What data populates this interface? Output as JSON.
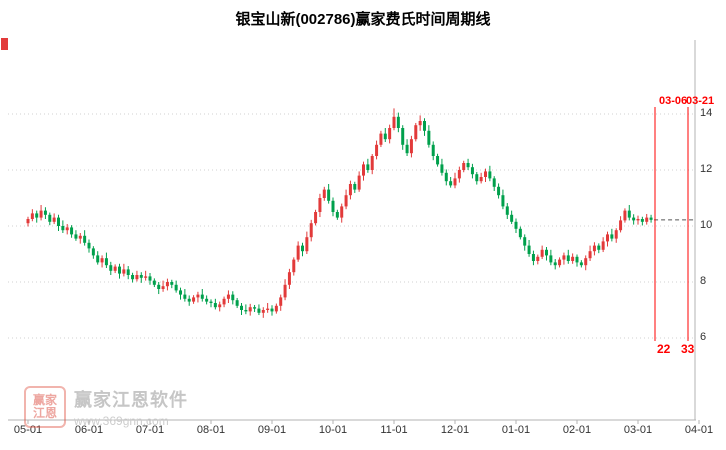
{
  "stock_name": "银宝山新",
  "stock_code": "002786",
  "watermark": {
    "logo_line1": "赢家",
    "logo_line2": "江恩",
    "brand": "赢家江恩软件",
    "url": "www.369gnn.com"
  },
  "chart_data": {
    "type": "candlestick",
    "title": "银宝山新(002786)赢家费氏时间周期线",
    "x_tick_labels": [
      "05-01",
      "06-01",
      "07-01",
      "08-01",
      "09-01",
      "10-01",
      "11-01",
      "12-01",
      "01-01",
      "02-01",
      "03-01",
      "04-01"
    ],
    "y_ticks": [
      14,
      12,
      10,
      8,
      6
    ],
    "ylim_visible": [
      6,
      14
    ],
    "grid": "dotted-horizontal",
    "legend": "none",
    "up_color": "#e23a3a",
    "down_color": "#00a04c",
    "annotation_color": "#ff0000",
    "last_price_line": 10.22,
    "fib_time_lines": [
      {
        "date_label": "03-06",
        "count_label": "22"
      },
      {
        "date_label": "03-21",
        "count_label": "33"
      }
    ],
    "candles_format": [
      "open",
      "close",
      "low",
      "high"
    ],
    "candles": [
      [
        10.1,
        10.25,
        9.98,
        10.33
      ],
      [
        10.25,
        10.45,
        10.17,
        10.6
      ],
      [
        10.45,
        10.3,
        10.12,
        10.55
      ],
      [
        10.3,
        10.55,
        10.2,
        10.75
      ],
      [
        10.55,
        10.4,
        10.25,
        10.67
      ],
      [
        10.4,
        10.15,
        10.03,
        10.48
      ],
      [
        10.15,
        10.3,
        10.07,
        10.45
      ],
      [
        10.3,
        10.0,
        9.82,
        10.4
      ],
      [
        10.0,
        9.85,
        9.75,
        10.2
      ],
      [
        9.85,
        9.95,
        9.7,
        10.07
      ],
      [
        9.95,
        9.7,
        9.58,
        10.03
      ],
      [
        9.7,
        9.55,
        9.47,
        9.85
      ],
      [
        9.55,
        9.65,
        9.37,
        9.75
      ],
      [
        9.65,
        9.4,
        9.3,
        9.85
      ],
      [
        9.4,
        9.2,
        9.05,
        9.52
      ],
      [
        9.2,
        8.95,
        8.83,
        9.28
      ],
      [
        8.95,
        8.7,
        8.62,
        9.1
      ],
      [
        8.7,
        8.85,
        8.52,
        8.95
      ],
      [
        8.85,
        8.6,
        8.5,
        9.05
      ],
      [
        8.6,
        8.4,
        8.25,
        8.72
      ],
      [
        8.4,
        8.55,
        8.32,
        8.63
      ],
      [
        8.55,
        8.3,
        8.12,
        8.65
      ],
      [
        8.3,
        8.45,
        8.2,
        8.65
      ],
      [
        8.45,
        8.25,
        8.1,
        8.57
      ],
      [
        8.25,
        8.1,
        7.98,
        8.33
      ],
      [
        8.1,
        8.25,
        8.02,
        8.4
      ],
      [
        8.25,
        8.15,
        7.97,
        8.35
      ],
      [
        8.15,
        8.2,
        8.05,
        8.4
      ],
      [
        8.2,
        8.05,
        7.9,
        8.32
      ],
      [
        8.05,
        7.9,
        7.82,
        8.13
      ],
      [
        7.9,
        7.75,
        7.57,
        8.0
      ],
      [
        7.75,
        7.85,
        7.65,
        8.05
      ],
      [
        7.85,
        8.0,
        7.7,
        8.12
      ],
      [
        8.0,
        7.9,
        7.78,
        8.08
      ],
      [
        7.9,
        7.7,
        7.62,
        8.05
      ],
      [
        7.7,
        7.55,
        7.37,
        7.8
      ],
      [
        7.55,
        7.4,
        7.3,
        7.75
      ],
      [
        7.4,
        7.3,
        7.15,
        7.52
      ],
      [
        7.3,
        7.45,
        7.22,
        7.53
      ],
      [
        7.45,
        7.55,
        7.27,
        7.65
      ],
      [
        7.55,
        7.4,
        7.3,
        7.75
      ],
      [
        7.4,
        7.3,
        7.2,
        7.52
      ],
      [
        7.3,
        7.25,
        7.1,
        7.38
      ],
      [
        7.25,
        7.1,
        7.02,
        7.4
      ],
      [
        7.1,
        7.2,
        6.95,
        7.3
      ],
      [
        7.2,
        7.4,
        7.1,
        7.48
      ],
      [
        7.4,
        7.55,
        7.25,
        7.7
      ],
      [
        7.55,
        7.35,
        7.2,
        7.67
      ],
      [
        7.35,
        7.15,
        7.07,
        7.43
      ],
      [
        7.15,
        7.0,
        6.82,
        7.25
      ],
      [
        7.0,
        6.95,
        6.85,
        7.2
      ],
      [
        6.95,
        7.1,
        6.8,
        7.22
      ],
      [
        7.1,
        7.05,
        6.93,
        7.18
      ],
      [
        7.05,
        6.9,
        6.82,
        7.2
      ],
      [
        6.9,
        7.0,
        6.72,
        7.1
      ],
      [
        7.0,
        7.05,
        6.9,
        7.25
      ],
      [
        7.05,
        6.95,
        6.8,
        7.17
      ],
      [
        6.95,
        7.15,
        6.87,
        7.23
      ],
      [
        7.15,
        7.45,
        6.97,
        7.55
      ],
      [
        7.45,
        7.9,
        7.35,
        8.1
      ],
      [
        7.9,
        8.35,
        7.75,
        8.47
      ],
      [
        8.35,
        8.8,
        8.23,
        8.88
      ],
      [
        8.8,
        9.3,
        8.72,
        9.45
      ],
      [
        9.3,
        9.1,
        8.92,
        9.4
      ],
      [
        9.1,
        9.6,
        9.0,
        9.8
      ],
      [
        9.6,
        10.1,
        9.45,
        10.22
      ],
      [
        10.1,
        10.5,
        10.02,
        10.58
      ],
      [
        10.5,
        11.0,
        10.32,
        11.15
      ],
      [
        11.0,
        11.3,
        10.9,
        11.4
      ],
      [
        11.3,
        10.9,
        10.8,
        11.5
      ],
      [
        10.9,
        10.5,
        10.35,
        11.02
      ],
      [
        10.5,
        10.3,
        10.22,
        10.58
      ],
      [
        10.3,
        10.7,
        10.12,
        10.8
      ],
      [
        10.7,
        11.1,
        10.6,
        11.3
      ],
      [
        11.1,
        11.5,
        10.95,
        11.62
      ],
      [
        11.5,
        11.3,
        11.18,
        11.58
      ],
      [
        11.3,
        11.8,
        11.22,
        11.95
      ],
      [
        11.8,
        12.2,
        11.62,
        12.3
      ],
      [
        12.2,
        12.0,
        11.9,
        12.4
      ],
      [
        12.0,
        12.5,
        11.85,
        12.57
      ],
      [
        12.5,
        12.9,
        12.38,
        13.05
      ],
      [
        12.9,
        13.3,
        12.82,
        13.4
      ],
      [
        13.3,
        13.1,
        13.0,
        13.5
      ],
      [
        13.1,
        13.5,
        12.95,
        13.62
      ],
      [
        13.5,
        13.9,
        13.42,
        14.2
      ],
      [
        13.9,
        13.5,
        13.35,
        14.05
      ],
      [
        13.5,
        12.9,
        12.72,
        13.6
      ],
      [
        12.9,
        12.6,
        12.5,
        13.1
      ],
      [
        12.6,
        13.1,
        12.45,
        13.22
      ],
      [
        13.1,
        13.6,
        13.02,
        13.68
      ],
      [
        13.6,
        13.75,
        13.4,
        13.95
      ],
      [
        13.75,
        13.4,
        13.22,
        13.85
      ],
      [
        13.4,
        12.9,
        12.8,
        13.6
      ],
      [
        12.9,
        12.5,
        12.35,
        13.02
      ],
      [
        12.5,
        12.2,
        12.12,
        12.58
      ],
      [
        12.2,
        11.9,
        11.8,
        12.4
      ],
      [
        11.9,
        11.6,
        11.45,
        12.02
      ],
      [
        11.6,
        11.45,
        11.37,
        11.75
      ],
      [
        11.45,
        11.7,
        11.35,
        11.9
      ],
      [
        11.7,
        12.0,
        11.55,
        12.12
      ],
      [
        12.0,
        12.25,
        11.92,
        12.33
      ],
      [
        12.25,
        12.1,
        12.0,
        12.4
      ],
      [
        12.1,
        11.85,
        11.7,
        12.22
      ],
      [
        11.85,
        11.6,
        11.48,
        11.93
      ],
      [
        11.6,
        11.75,
        11.52,
        11.9
      ],
      [
        11.75,
        11.95,
        11.57,
        12.05
      ],
      [
        11.95,
        11.7,
        11.6,
        12.15
      ],
      [
        11.7,
        11.4,
        11.25,
        11.78
      ],
      [
        11.4,
        11.1,
        10.98,
        11.52
      ],
      [
        11.1,
        10.7,
        10.6,
        11.3
      ],
      [
        10.7,
        10.4,
        10.25,
        10.82
      ],
      [
        10.4,
        10.15,
        10.07,
        10.55
      ],
      [
        10.15,
        9.9,
        9.75,
        10.27
      ],
      [
        9.9,
        9.6,
        9.52,
        9.98
      ],
      [
        9.6,
        9.3,
        9.12,
        9.7
      ],
      [
        9.3,
        9.0,
        8.9,
        9.5
      ],
      [
        9.0,
        8.75,
        8.6,
        9.12
      ],
      [
        8.75,
        8.9,
        8.63,
        8.98
      ],
      [
        8.9,
        9.15,
        8.82,
        9.3
      ],
      [
        9.15,
        8.95,
        8.77,
        9.25
      ],
      [
        8.95,
        8.7,
        8.6,
        9.15
      ],
      [
        8.7,
        8.6,
        8.45,
        8.82
      ],
      [
        8.6,
        8.8,
        8.52,
        8.88
      ],
      [
        8.8,
        8.95,
        8.62,
        9.05
      ],
      [
        8.95,
        8.75,
        8.65,
        9.15
      ],
      [
        8.75,
        8.9,
        8.65,
        9.02
      ],
      [
        8.9,
        8.7,
        8.55,
        8.98
      ],
      [
        8.7,
        8.6,
        8.52,
        8.78
      ],
      [
        8.6,
        8.85,
        8.42,
        8.95
      ],
      [
        8.85,
        9.1,
        8.75,
        9.3
      ],
      [
        9.1,
        9.3,
        8.95,
        9.42
      ],
      [
        9.3,
        9.15,
        9.03,
        9.38
      ],
      [
        9.15,
        9.45,
        9.07,
        9.6
      ],
      [
        9.45,
        9.7,
        9.27,
        9.8
      ],
      [
        9.7,
        9.55,
        9.45,
        9.9
      ],
      [
        9.55,
        9.85,
        9.4,
        9.92
      ],
      [
        9.85,
        10.2,
        9.77,
        10.35
      ],
      [
        10.2,
        10.55,
        10.12,
        10.63
      ],
      [
        10.55,
        10.3,
        10.2,
        10.75
      ],
      [
        10.3,
        10.2,
        10.05,
        10.42
      ],
      [
        10.2,
        10.25,
        10.05,
        10.37
      ],
      [
        10.25,
        10.15,
        10.02,
        10.33
      ],
      [
        10.15,
        10.3,
        10.05,
        10.43
      ],
      [
        10.3,
        10.22,
        10.12,
        10.4
      ]
    ]
  }
}
